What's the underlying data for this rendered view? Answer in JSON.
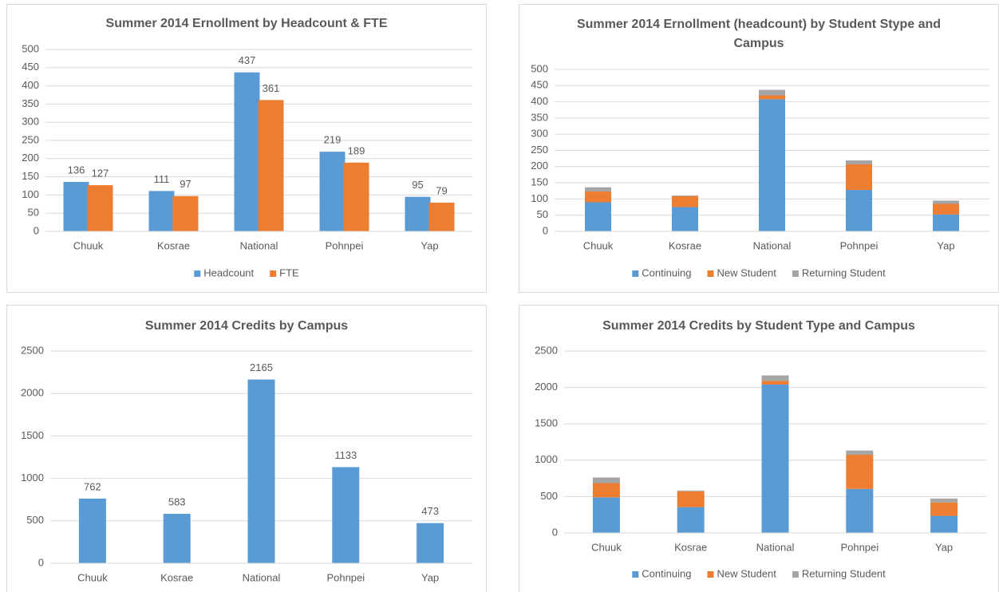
{
  "chart_data": [
    {
      "type": "bar",
      "title": "Summer 2014 Ernollment by Headcount & FTE",
      "categories": [
        "Chuuk",
        "Kosrae",
        "National",
        "Pohnpei",
        "Yap"
      ],
      "series": [
        {
          "name": "Headcount",
          "color": "#5b9bd5",
          "values": [
            136,
            111,
            437,
            219,
            95
          ]
        },
        {
          "name": "FTE",
          "color": "#ed7d31",
          "values": [
            127,
            97,
            361,
            189,
            79
          ]
        }
      ],
      "ylim": [
        0,
        500
      ],
      "yticks": [
        0,
        50,
        100,
        150,
        200,
        250,
        300,
        350,
        400,
        450,
        500
      ],
      "grid": true,
      "data_labels": true,
      "legend": "bottom"
    },
    {
      "type": "stacked_bar",
      "title": "Summer 2014 Ernollment (headcount) by Student Stype and Campus",
      "categories": [
        "Chuuk",
        "Kosrae",
        "National",
        "Pohnpei",
        "Yap"
      ],
      "series": [
        {
          "name": "Continuing",
          "color": "#5b9bd5",
          "values": [
            90,
            75,
            408,
            128,
            52
          ]
        },
        {
          "name": "New Student",
          "color": "#ed7d31",
          "values": [
            33,
            34,
            12,
            79,
            33
          ]
        },
        {
          "name": "Returning Student",
          "color": "#a5a5a5",
          "values": [
            13,
            2,
            17,
            12,
            10
          ]
        }
      ],
      "ylim": [
        0,
        500
      ],
      "yticks": [
        0,
        50,
        100,
        150,
        200,
        250,
        300,
        350,
        400,
        450,
        500
      ],
      "grid": true,
      "data_labels": false,
      "legend": "bottom"
    },
    {
      "type": "bar",
      "title": "Summer 2014 Credits by Campus",
      "categories": [
        "Chuuk",
        "Kosrae",
        "National",
        "Pohnpei",
        "Yap"
      ],
      "series": [
        {
          "color": "#5b9bd5",
          "values": [
            762,
            583,
            2165,
            1133,
            473
          ]
        }
      ],
      "ylim": [
        0,
        2500
      ],
      "yticks": [
        0,
        500,
        1000,
        1500,
        2000,
        2500
      ],
      "grid": true,
      "data_labels": true
    },
    {
      "type": "stacked_bar",
      "title": "Summer 2014 Credits by Student Type and Campus",
      "categories": [
        "Chuuk",
        "Kosrae",
        "National",
        "Pohnpei",
        "Yap"
      ],
      "series": [
        {
          "name": "Continuing",
          "color": "#5b9bd5",
          "values": [
            490,
            355,
            2040,
            605,
            235
          ]
        },
        {
          "name": "New Student",
          "color": "#ed7d31",
          "values": [
            195,
            218,
            50,
            470,
            185
          ]
        },
        {
          "name": "Returning Student",
          "color": "#a5a5a5",
          "values": [
            77,
            10,
            75,
            58,
            53
          ]
        }
      ],
      "ylim": [
        0,
        2500
      ],
      "yticks": [
        0,
        500,
        1000,
        1500,
        2000,
        2500
      ],
      "grid": true,
      "data_labels": false,
      "legend": "bottom"
    }
  ]
}
